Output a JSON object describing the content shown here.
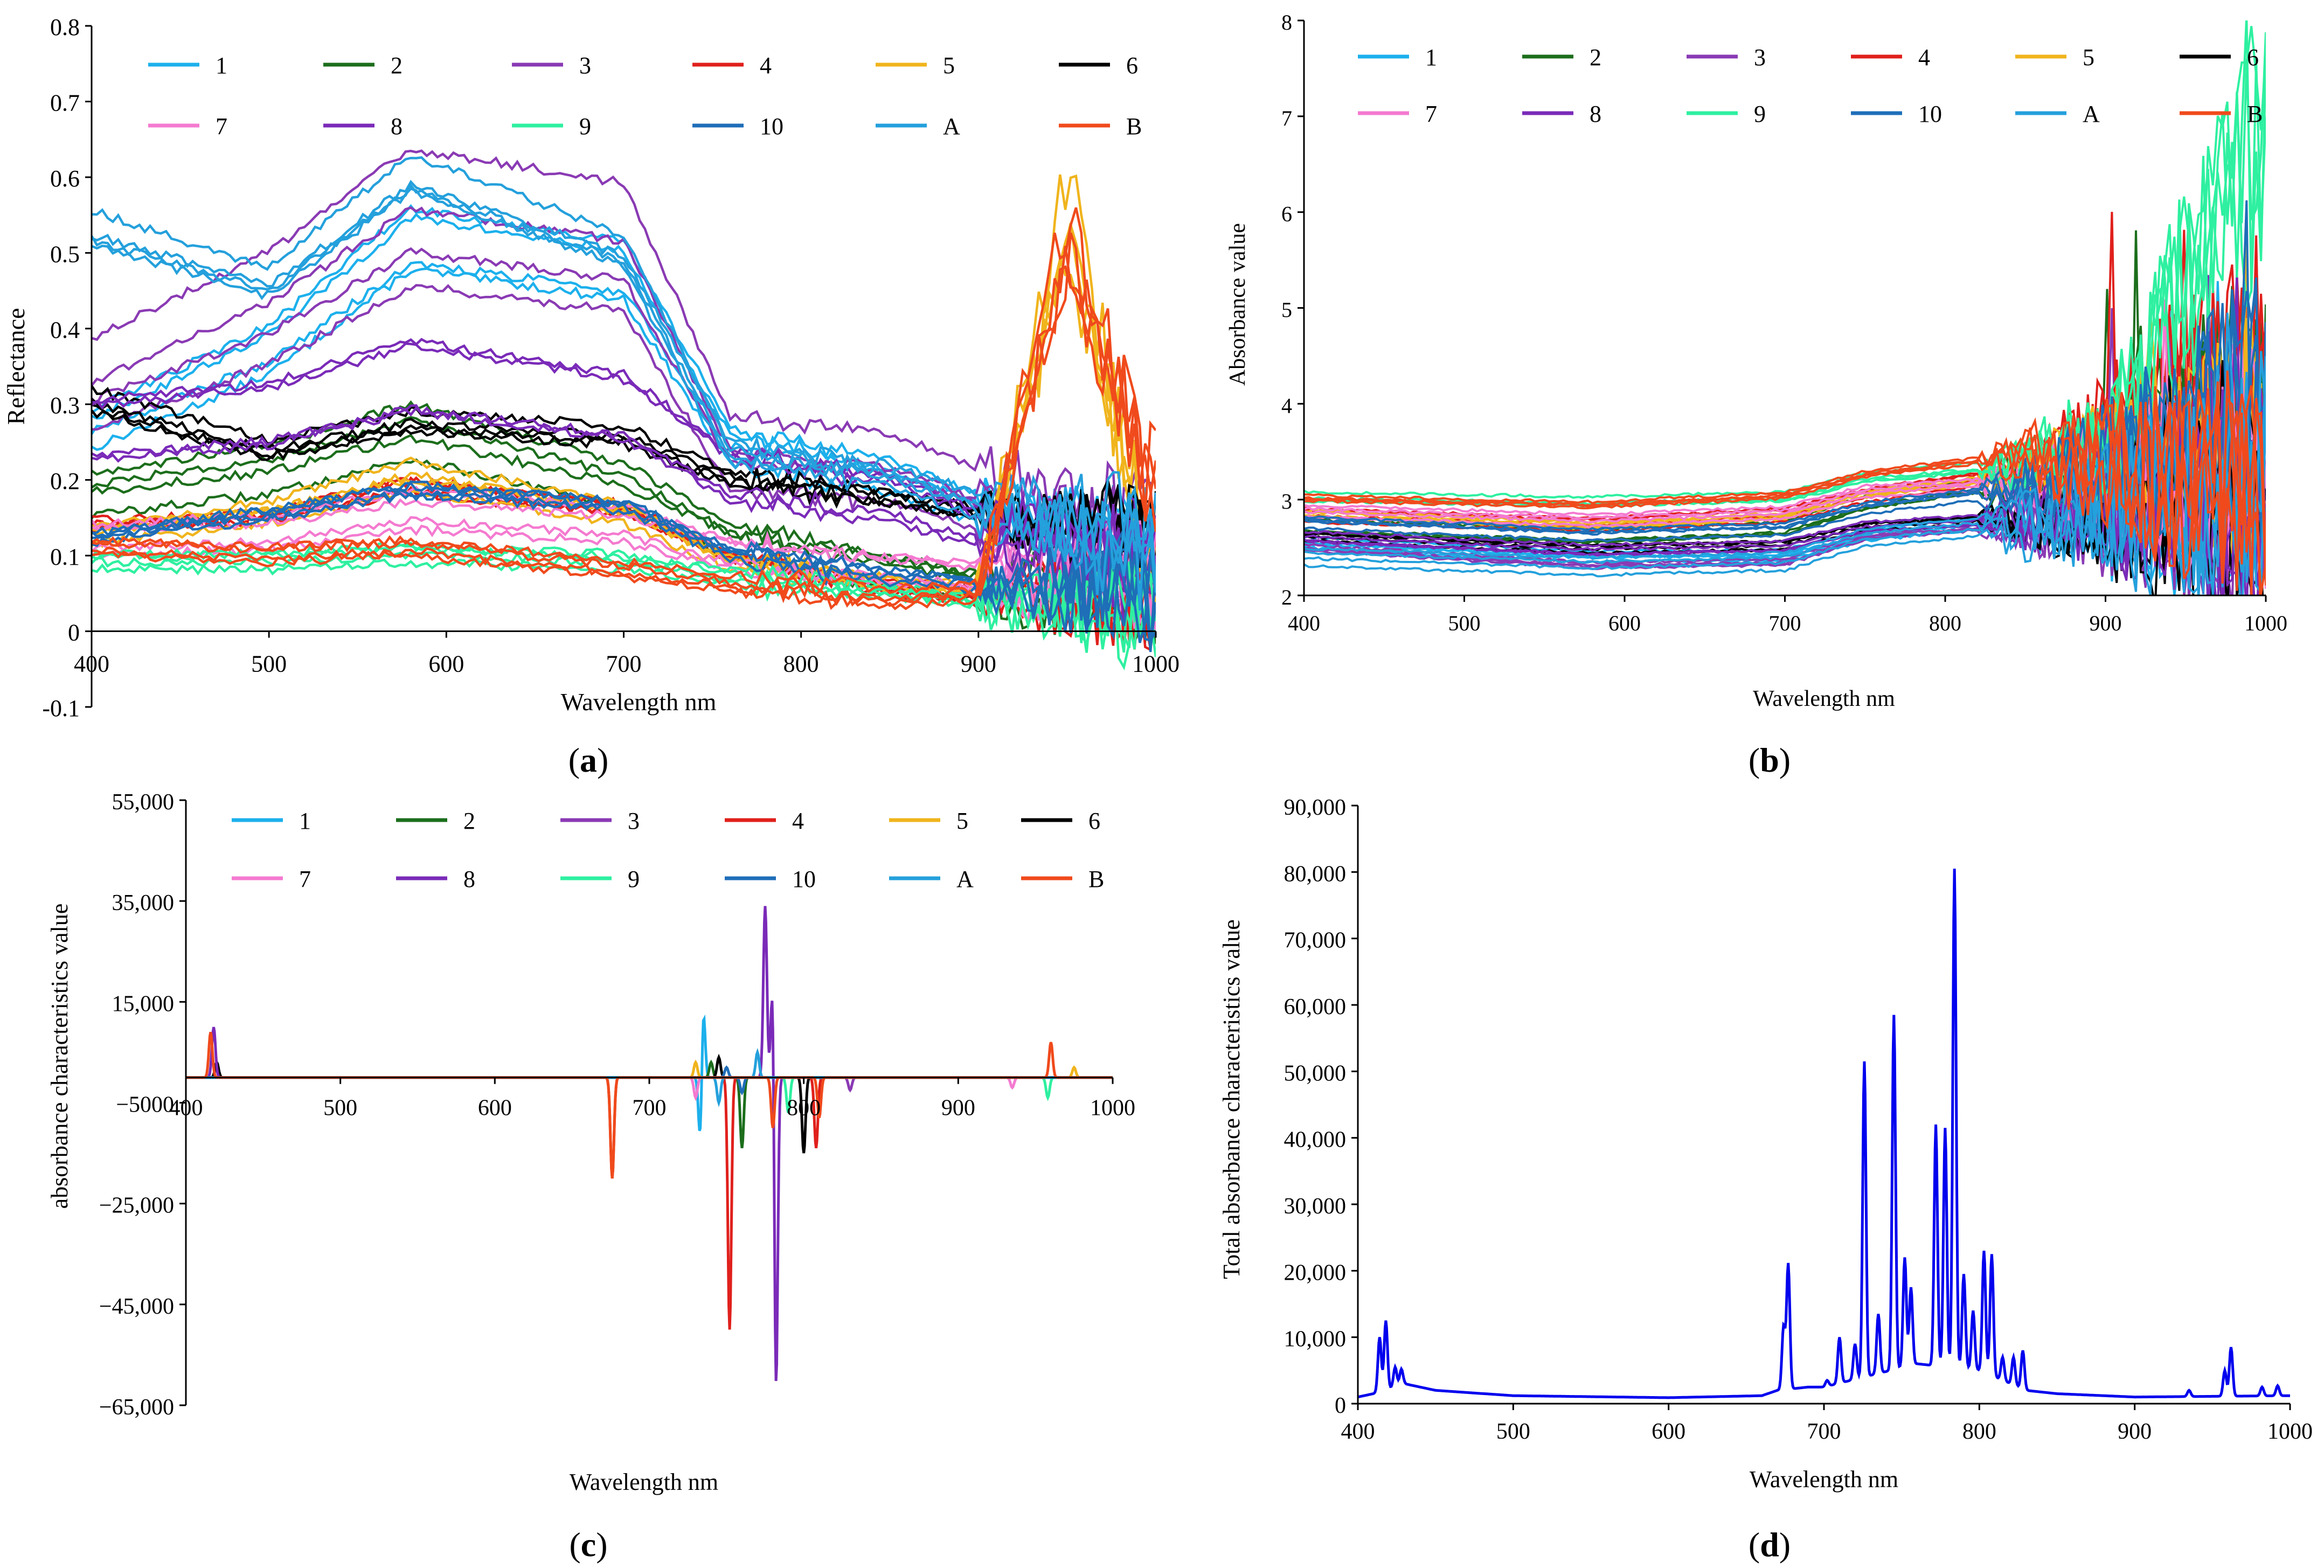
{
  "series_names": [
    "1",
    "2",
    "3",
    "4",
    "5",
    "6",
    "7",
    "8",
    "9",
    "10",
    "A",
    "B"
  ],
  "series_colors": [
    "#1cb0ec",
    "#1c6e1c",
    "#8a3ab4",
    "#e0201c",
    "#f0b41c",
    "#000000",
    "#f47ad0",
    "#7a2ab8",
    "#2ef0a0",
    "#1e6eb8",
    "#24a0dc",
    "#f04a1c"
  ],
  "panels": {
    "a": {
      "label_open": "(",
      "label_letter": "a",
      "label_close": ")"
    },
    "b": {
      "label_open": "(",
      "label_letter": "b",
      "label_close": ")"
    },
    "c": {
      "label_open": "(",
      "label_letter": "c",
      "label_close": ")"
    },
    "d": {
      "label_open": "(",
      "label_letter": "d",
      "label_close": ")"
    }
  },
  "chart_data": [
    {
      "id": "a",
      "type": "line",
      "title": "",
      "xlabel": "Wavelength nm",
      "ylabel": "Reflectance",
      "xlim": [
        400,
        1000
      ],
      "ylim": [
        -0.1,
        0.8
      ],
      "xticks": [
        400,
        500,
        600,
        700,
        800,
        900,
        1000
      ],
      "yticks": [
        -0.1,
        0,
        0.1,
        0.2,
        0.3,
        0.4,
        0.5,
        0.6,
        0.7,
        0.8
      ],
      "ytick_labels": [
        "-0.1",
        "0",
        "0.1",
        "0.2",
        "0.3",
        "0.4",
        "0.5",
        "0.6",
        "0.7",
        "0.8"
      ],
      "legend": "top, 2 rows x 6",
      "series_note": "each legend entry 1-10, A, B is a group of replicate reflectance spectra",
      "series": [
        {
          "name": "1",
          "values_at": {
            "400": 0.26,
            "500": 0.36,
            "580": 0.5,
            "700": 0.46,
            "760": 0.24,
            "850": 0.2,
            "900": 0.16,
            "1000": 0.1
          }
        },
        {
          "name": "2",
          "values_at": {
            "400": 0.18,
            "500": 0.21,
            "580": 0.26,
            "700": 0.19,
            "760": 0.12,
            "850": 0.08,
            "900": 0.06,
            "1000": 0.05
          }
        },
        {
          "name": "3",
          "values_at": {
            "400": 0.32,
            "500": 0.42,
            "580": 0.54,
            "700": 0.5,
            "760": 0.23,
            "850": 0.21,
            "900": 0.17,
            "1000": 0.1
          }
        },
        {
          "name": "4",
          "values_at": {
            "400": 0.14,
            "500": 0.15,
            "580": 0.19,
            "700": 0.16,
            "760": 0.1,
            "850": 0.06,
            "900": 0.05,
            "1000": 0.05
          }
        },
        {
          "name": "5",
          "values_at": {
            "400": 0.14,
            "500": 0.17,
            "580": 0.22,
            "700": 0.17,
            "760": 0.1,
            "850": 0.07,
            "900": 0.06,
            "950": 0.58,
            "1000": 0.05
          }
        },
        {
          "name": "6",
          "values_at": {
            "400": 0.33,
            "500": 0.26,
            "580": 0.3,
            "700": 0.28,
            "760": 0.22,
            "850": 0.19,
            "900": 0.17,
            "1000": 0.13
          }
        },
        {
          "name": "7",
          "values_at": {
            "400": 0.12,
            "500": 0.13,
            "580": 0.16,
            "700": 0.14,
            "760": 0.1,
            "850": 0.08,
            "900": 0.07,
            "1000": 0.06
          }
        },
        {
          "name": "8",
          "values_at": {
            "400": 0.27,
            "500": 0.29,
            "580": 0.34,
            "700": 0.3,
            "760": 0.21,
            "850": 0.18,
            "900": 0.14,
            "1000": 0.09
          }
        },
        {
          "name": "9",
          "values_at": {
            "400": 0.09,
            "500": 0.09,
            "580": 0.1,
            "700": 0.09,
            "760": 0.07,
            "850": 0.05,
            "900": 0.04,
            "1000": 0.03
          }
        },
        {
          "name": "10",
          "values_at": {
            "400": 0.12,
            "500": 0.15,
            "580": 0.18,
            "700": 0.16,
            "760": 0.1,
            "850": 0.07,
            "900": 0.06,
            "1000": 0.05
          }
        },
        {
          "name": "A",
          "values_at": {
            "400": 0.52,
            "500": 0.45,
            "580": 0.59,
            "700": 0.49,
            "760": 0.23,
            "850": 0.2,
            "900": 0.16,
            "1000": 0.1
          }
        },
        {
          "name": "B",
          "values_at": {
            "400": 0.12,
            "500": 0.11,
            "580": 0.12,
            "700": 0.09,
            "760": 0.07,
            "850": 0.05,
            "900": 0.06,
            "950": 0.53,
            "1000": 0.2
          }
        }
      ]
    },
    {
      "id": "b",
      "type": "line",
      "title": "",
      "xlabel": "Wavelength nm",
      "ylabel": "Absorbance value",
      "xlim": [
        400,
        1000
      ],
      "ylim": [
        2,
        8
      ],
      "xticks": [
        400,
        500,
        600,
        700,
        800,
        900,
        1000
      ],
      "yticks": [
        2,
        3,
        4,
        5,
        6,
        7,
        8
      ],
      "ytick_labels": [
        "2",
        "3",
        "4",
        "5",
        "6",
        "7",
        "8"
      ],
      "legend": "top, 2 rows x 6",
      "series_note": "each legend entry is a group of replicate absorbance spectra",
      "series": [
        {
          "name": "1",
          "values_at": {
            "400": 2.55,
            "580": 2.4,
            "700": 2.42,
            "750": 2.62,
            "850": 2.8,
            "900": 2.9,
            "1000": 3.2
          }
        },
        {
          "name": "2",
          "values_at": {
            "400": 2.7,
            "580": 2.6,
            "700": 2.68,
            "750": 2.95,
            "850": 3.2,
            "900": 3.4,
            "1000": 4.0
          }
        },
        {
          "name": "3",
          "values_at": {
            "400": 2.5,
            "580": 2.32,
            "700": 2.35,
            "750": 2.62,
            "850": 2.75,
            "900": 2.9,
            "1000": 3.1
          }
        },
        {
          "name": "4",
          "values_at": {
            "400": 2.85,
            "580": 2.75,
            "700": 2.85,
            "750": 3.05,
            "850": 3.3,
            "900": 3.7,
            "1000": 4.4
          }
        },
        {
          "name": "5",
          "values_at": {
            "400": 2.85,
            "580": 2.72,
            "700": 2.82,
            "750": 3.05,
            "850": 3.25,
            "900": 3.4,
            "1000": 3.6
          }
        },
        {
          "name": "6",
          "values_at": {
            "400": 2.65,
            "580": 2.52,
            "700": 2.56,
            "750": 2.75,
            "850": 2.85,
            "900": 2.9,
            "1000": 2.9
          }
        },
        {
          "name": "7",
          "values_at": {
            "400": 2.9,
            "580": 2.8,
            "700": 2.88,
            "750": 3.1,
            "850": 3.2,
            "900": 3.3,
            "1000": 3.3
          }
        },
        {
          "name": "8",
          "values_at": {
            "400": 2.6,
            "580": 2.46,
            "700": 2.5,
            "750": 2.7,
            "850": 2.8,
            "900": 2.95,
            "1000": 3.0
          }
        },
        {
          "name": "9",
          "values_at": {
            "400": 3.05,
            "580": 3.0,
            "700": 3.05,
            "750": 3.25,
            "850": 3.4,
            "900": 3.6,
            "1000": 6.8
          }
        },
        {
          "name": "10",
          "values_at": {
            "400": 2.75,
            "580": 2.62,
            "700": 2.68,
            "750": 2.9,
            "850": 3.1,
            "900": 3.3,
            "1000": 4.0
          }
        },
        {
          "name": "A",
          "values_at": {
            "400": 2.4,
            "580": 2.3,
            "700": 2.35,
            "750": 2.6,
            "850": 2.75,
            "900": 2.9,
            "1000": 3.2
          }
        },
        {
          "name": "B",
          "values_at": {
            "400": 2.95,
            "580": 2.88,
            "700": 2.98,
            "750": 3.2,
            "850": 3.4,
            "900": 3.3,
            "1000": 3.0
          }
        }
      ]
    },
    {
      "id": "c",
      "type": "line",
      "title": "",
      "xlabel": "Wavelength nm",
      "ylabel": "absorbance characteristics value",
      "xlim": [
        400,
        1000
      ],
      "ylim": [
        -65000,
        55000
      ],
      "xticks": [
        400,
        500,
        600,
        700,
        800,
        900,
        1000
      ],
      "yticks": [
        -65000,
        -45000,
        -25000,
        -5000,
        15000,
        35000,
        55000
      ],
      "ytick_labels": [
        "−65,000",
        "−45,000",
        "−25,000",
        "−5000",
        "15,000",
        "35,000",
        "55,000"
      ],
      "legend": "top, 2 rows x 6",
      "series": [
        {
          "name": "1",
          "peaks": [
            [
              735,
              14000
            ],
            [
              733,
              -13000
            ]
          ]
        },
        {
          "name": "2",
          "peaks": [
            [
              760,
              -14000
            ],
            [
              740,
              3000
            ]
          ]
        },
        {
          "name": "3",
          "peaks": [
            [
              830,
              -2500
            ],
            [
              420,
              2000
            ]
          ]
        },
        {
          "name": "4",
          "peaks": [
            [
              752,
              -50000
            ],
            [
              808,
              -14000
            ],
            [
              676,
              -20000
            ]
          ]
        },
        {
          "name": "5",
          "peaks": [
            [
              730,
              3000
            ],
            [
              975,
              2000
            ]
          ]
        },
        {
          "name": "6",
          "peaks": [
            [
              800,
              -15000
            ],
            [
              745,
              4000
            ],
            [
              420,
              3000
            ]
          ]
        },
        {
          "name": "7",
          "peaks": [
            [
              730,
              -4000
            ],
            [
              935,
              -2000
            ]
          ]
        },
        {
          "name": "8",
          "peaks": [
            [
              775,
              34000
            ],
            [
              782,
              -65000
            ],
            [
              780,
              23000
            ],
            [
              418,
              10000
            ]
          ]
        },
        {
          "name": "9",
          "peaks": [
            [
              790,
              -7000
            ],
            [
              958,
              -4000
            ]
          ]
        },
        {
          "name": "10",
          "peaks": [
            [
              750,
              2000
            ],
            [
              760,
              -3000
            ]
          ]
        },
        {
          "name": "A",
          "peaks": [
            [
              770,
              5000
            ],
            [
              745,
              -5000
            ]
          ]
        },
        {
          "name": "B",
          "peaks": [
            [
              676,
              -20000
            ],
            [
              416,
              9000
            ],
            [
              960,
              7000
            ],
            [
              810,
              -8000
            ],
            [
              780,
              -10000
            ]
          ]
        }
      ]
    },
    {
      "id": "d",
      "type": "line",
      "title": "",
      "xlabel": "Wavelength nm",
      "ylabel": "Total absorbance characteristics value",
      "xlim": [
        400,
        1000
      ],
      "ylim": [
        0,
        90000
      ],
      "xticks": [
        400,
        500,
        600,
        700,
        800,
        900,
        1000
      ],
      "yticks": [
        0,
        10000,
        20000,
        30000,
        40000,
        50000,
        60000,
        70000,
        80000,
        90000
      ],
      "ytick_labels": [
        "0",
        "10,000",
        "20,000",
        "30,000",
        "40,000",
        "50,000",
        "60,000",
        "70,000",
        "80,000",
        "90,000"
      ],
      "color": "#0000ee",
      "baseline": [
        [
          400,
          1000
        ],
        [
          410,
          1500
        ],
        [
          430,
          3000
        ],
        [
          450,
          2000
        ],
        [
          500,
          1200
        ],
        [
          600,
          900
        ],
        [
          660,
          1200
        ],
        [
          670,
          2000
        ],
        [
          690,
          2500
        ],
        [
          700,
          2500
        ],
        [
          760,
          6000
        ],
        [
          800,
          5000
        ],
        [
          830,
          2000
        ],
        [
          850,
          1500
        ],
        [
          900,
          1000
        ],
        [
          950,
          1100
        ],
        [
          1000,
          1200
        ]
      ],
      "peaks": [
        [
          414,
          10000
        ],
        [
          418,
          12500
        ],
        [
          424,
          5500
        ],
        [
          428,
          5200
        ],
        [
          674,
          11500
        ],
        [
          677,
          21000
        ],
        [
          702,
          3500
        ],
        [
          710,
          10000
        ],
        [
          720,
          9000
        ],
        [
          726,
          51500
        ],
        [
          735,
          13500
        ],
        [
          745,
          58500
        ],
        [
          752,
          22000
        ],
        [
          756,
          17500
        ],
        [
          772,
          42000
        ],
        [
          778,
          41500
        ],
        [
          784,
          80500
        ],
        [
          790,
          19500
        ],
        [
          796,
          14000
        ],
        [
          803,
          23000
        ],
        [
          808,
          22500
        ],
        [
          815,
          7000
        ],
        [
          822,
          7000
        ],
        [
          828,
          8000
        ],
        [
          935,
          2000
        ],
        [
          958,
          5000
        ],
        [
          962,
          8500
        ],
        [
          982,
          2500
        ],
        [
          992,
          2700
        ]
      ]
    }
  ]
}
